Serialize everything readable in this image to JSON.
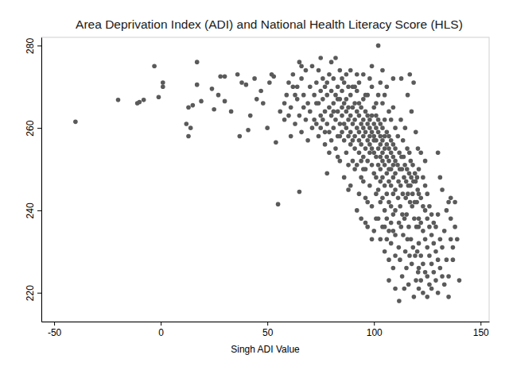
{
  "chart_data": {
    "type": "scatter",
    "title": "Area Deprivation Index (ADI) and National Health Literacy Score (HLS)",
    "xlabel": "Singh ADI Value",
    "color": "#5a5a5a",
    "marker": "circle",
    "grid": false,
    "xlim": [
      -56,
      154
    ],
    "ylim": [
      213,
      282
    ],
    "xticks": [
      -50,
      0,
      50,
      100,
      150
    ],
    "yticks": [
      220,
      240,
      260,
      280
    ],
    "x": [
      -40,
      -20,
      -11,
      -10,
      -8,
      -3,
      -1,
      1,
      1,
      12,
      13,
      13,
      14,
      15,
      17,
      17,
      19,
      24,
      25,
      27,
      28,
      30,
      30,
      33,
      36,
      37,
      38,
      40,
      41,
      42,
      44,
      45,
      47,
      48,
      50,
      51,
      52,
      53,
      54,
      55,
      56,
      58,
      60,
      62,
      63,
      65,
      65,
      66,
      58,
      59,
      60,
      61,
      61,
      62,
      63,
      64,
      64,
      65,
      66,
      66,
      67,
      67,
      68,
      68,
      69,
      69,
      70,
      70,
      71,
      71,
      72,
      72,
      73,
      73,
      74,
      74,
      75,
      75,
      75,
      76,
      76,
      77,
      77,
      77,
      78,
      78,
      78,
      79,
      79,
      79,
      80,
      80,
      80,
      80,
      74,
      76,
      78,
      79,
      73,
      75,
      77,
      81,
      81,
      81,
      82,
      82,
      82,
      83,
      83,
      83,
      84,
      84,
      84,
      84,
      85,
      85,
      85,
      85,
      86,
      86,
      86,
      86,
      87,
      87,
      87,
      87,
      88,
      88,
      88,
      88,
      88,
      89,
      89,
      89,
      89,
      89,
      90,
      90,
      90,
      90,
      90,
      82,
      83,
      85,
      86,
      87,
      88,
      89,
      84,
      81,
      83,
      91,
      91,
      91,
      91,
      92,
      92,
      92,
      92,
      92,
      93,
      93,
      93,
      93,
      93,
      94,
      94,
      94,
      94,
      94,
      95,
      95,
      95,
      95,
      95,
      95,
      96,
      96,
      96,
      96,
      96,
      96,
      97,
      97,
      97,
      97,
      97,
      98,
      98,
      98,
      98,
      98,
      98,
      99,
      99,
      99,
      99,
      99,
      99,
      100,
      100,
      100,
      100,
      100,
      100,
      100,
      91,
      93,
      95,
      97,
      99,
      92,
      94,
      96,
      98,
      95,
      97,
      99,
      93,
      91,
      101,
      101,
      101,
      101,
      101,
      101,
      102,
      102,
      102,
      102,
      102,
      102,
      102,
      103,
      103,
      103,
      103,
      103,
      103,
      103,
      104,
      104,
      104,
      104,
      104,
      104,
      104,
      104,
      105,
      105,
      105,
      105,
      105,
      105,
      105,
      106,
      106,
      106,
      106,
      106,
      106,
      106,
      107,
      107,
      107,
      107,
      107,
      107,
      107,
      107,
      108,
      108,
      108,
      108,
      108,
      108,
      108,
      109,
      109,
      109,
      109,
      109,
      109,
      109,
      109,
      110,
      110,
      110,
      110,
      110,
      110,
      110,
      110,
      101,
      103,
      105,
      107,
      109,
      102,
      104,
      106,
      108,
      110,
      101,
      103,
      105,
      107,
      109,
      111.1,
      111.5,
      111.9,
      111.3,
      111.7,
      111.2,
      111.6,
      111.8,
      112.1,
      112.5,
      112.9,
      112.3,
      112.7,
      112.2,
      112.6,
      112.8,
      113.1,
      113.5,
      113.9,
      113.3,
      113.7,
      113.2,
      113.6,
      114.1,
      114.5,
      114.9,
      114.3,
      114.7,
      114.2,
      114.6,
      115.1,
      115.5,
      115.9,
      115.3,
      115.7,
      115.2,
      115.6,
      115.8,
      116.1,
      116.5,
      116.9,
      116.3,
      116.7,
      116.2,
      116.6,
      116.8,
      117.1,
      117.5,
      117.9,
      117.3,
      117.7,
      117.2,
      117.6,
      118.1,
      118.5,
      118.9,
      118.3,
      118.7,
      118.2,
      118.6,
      119.1,
      119.5,
      119.9,
      119.3,
      119.7,
      119.2,
      119.6,
      120.1,
      120.5,
      120.9,
      120.3,
      120.7,
      120.2,
      120.6,
      121,
      121,
      121,
      121,
      121,
      121,
      122,
      122,
      122,
      122,
      122,
      123,
      123,
      123,
      123,
      123,
      124,
      124,
      124,
      124,
      124,
      125,
      125,
      125,
      125,
      125,
      126,
      126,
      126,
      126,
      127,
      127,
      127,
      127,
      128,
      128,
      128,
      129,
      129,
      129,
      130,
      130,
      130,
      130,
      131,
      131,
      131,
      132,
      132,
      132,
      133,
      133,
      134,
      134,
      135,
      135,
      136,
      136,
      137,
      137,
      138,
      138,
      139,
      140,
      136,
      135
    ],
    "values": [
      261.5,
      266.8,
      266,
      266.3,
      266.8,
      275,
      267.5,
      270,
      271,
      261,
      258,
      265,
      260,
      265.5,
      270.5,
      276,
      266.5,
      269.5,
      264.5,
      268,
      272.5,
      272.5,
      266.5,
      264,
      273,
      258,
      271,
      270.5,
      259.5,
      263,
      272,
      267,
      269,
      266,
      260,
      271,
      273,
      272.5,
      256.5,
      241.5,
      264,
      266,
      263,
      270,
      268,
      244.5,
      276,
      275,
      262,
      268,
      271,
      258,
      265,
      273,
      261,
      267,
      270,
      263,
      259,
      272,
      265,
      268,
      274,
      262,
      257,
      266,
      270,
      264,
      275,
      260,
      268,
      262,
      271,
      266,
      258,
      274,
      263,
      269,
      260,
      267,
      272,
      256,
      264,
      270,
      261,
      268,
      249,
      265,
      273,
      259,
      263,
      269,
      257,
      276,
      266,
      262,
      271,
      254,
      261,
      277,
      259,
      266,
      260,
      272,
      262,
      268,
      255,
      264,
      270,
      258,
      261,
      267,
      274,
      252,
      263,
      259,
      269,
      265,
      261,
      257,
      271,
      248,
      264,
      260,
      267,
      254,
      262,
      258,
      270,
      265,
      245,
      263,
      259,
      256,
      268,
      274,
      261,
      265,
      257,
      252,
      270,
      277,
      253,
      272,
      266,
      273,
      251,
      246,
      258,
      264,
      267,
      262,
      258,
      266,
      255,
      260,
      264,
      251,
      269,
      240,
      263,
      257,
      259,
      254,
      271,
      261,
      265,
      256,
      248,
      238,
      262,
      258,
      260,
      253,
      267,
      273,
      259,
      264,
      255,
      250,
      243,
      237,
      261,
      257,
      263,
      252,
      268,
      260,
      256,
      258,
      254,
      262,
      246,
      259,
      263,
      255,
      251,
      241,
      270,
      258,
      261,
      254,
      257,
      249,
      265,
      235,
      270,
      244,
      247,
      242,
      275,
      273,
      252,
      268,
      272,
      250,
      236,
      233,
      266,
      250,
      257,
      260,
      253,
      263,
      248,
      244,
      255,
      259,
      262,
      251,
      245,
      238,
      268,
      256,
      258,
      253,
      250,
      261,
      242,
      233,
      254,
      257,
      260,
      248,
      252,
      266,
      236,
      274,
      255,
      258,
      251,
      246,
      262,
      240,
      230,
      253,
      256,
      249,
      259,
      244,
      238,
      270,
      252,
      255,
      247,
      258,
      242,
      235,
      228,
      223,
      254,
      250,
      246,
      257,
      241,
      262,
      232,
      251,
      248,
      253,
      244,
      239,
      256,
      226,
      272,
      252,
      249,
      245,
      255,
      240,
      234,
      260,
      229,
      266,
      271,
      268,
      264,
      265,
      280,
      243,
      233,
      237,
      221,
      238,
      247,
      236,
      250,
      235,
      251,
      247,
      254,
      243,
      237,
      258,
      231,
      218,
      250,
      246,
      253,
      241,
      236,
      228,
      262,
      272,
      250,
      244,
      253,
      239,
      234,
      224,
      257,
      248,
      251,
      243,
      238,
      230,
      221,
      260,
      247,
      250,
      244,
      239,
      233,
      226,
      255,
      268,
      246,
      249,
      242,
      236,
      229,
      222,
      254,
      273,
      246,
      248,
      241,
      233,
      227,
      252,
      264,
      244,
      247,
      238,
      231,
      219,
      251,
      271,
      242,
      247,
      236,
      229,
      223,
      249,
      259,
      242,
      245,
      236,
      230,
      225,
      248,
      255,
      244,
      238,
      232,
      226,
      250,
      221,
      243,
      237,
      229,
      254,
      223,
      241,
      235,
      227,
      248,
      220,
      240,
      233,
      225,
      246,
      252,
      238,
      231,
      224,
      244,
      219,
      236,
      229,
      241,
      222,
      234,
      227,
      239,
      221,
      232,
      225,
      237,
      230,
      223,
      236,
      228,
      239,
      220,
      254,
      233,
      226,
      248,
      231,
      224,
      245,
      235,
      222,
      228,
      240,
      242,
      224,
      233,
      238,
      231,
      228,
      236,
      242,
      233,
      223,
      243,
      219
    ]
  }
}
